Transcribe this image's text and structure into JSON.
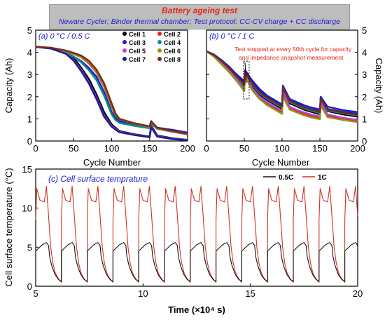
{
  "header": {
    "title": "Battery ageing test",
    "subtitle": "Neware Cycler; Binder thermal chamber;    Test protocol:  CC-CV charge + CC discharge"
  },
  "colors": {
    "blue": "#1b1bd6",
    "red": "#e8231a",
    "black": "#000000",
    "series_1C": "#cc3322",
    "series_05C": "#111111"
  },
  "chart_data": [
    {
      "type": "line",
      "panel": "(a)",
      "title": "(a) 0 °C  / 0.5 C",
      "xlabel": "Cycle Number",
      "ylabel": "Capacity (Ah)",
      "xlim": [
        0,
        200
      ],
      "ylim": [
        0,
        5
      ],
      "xticks": [
        0,
        50,
        100,
        150,
        200
      ],
      "yticks": [
        0,
        1,
        2,
        3,
        4,
        5
      ],
      "legend_position": "top-right",
      "series": [
        {
          "name": "Cell 1",
          "color": "#000000",
          "marker": "square",
          "x": [
            0,
            20,
            40,
            50,
            60,
            70,
            80,
            90,
            100,
            105,
            110,
            130,
            150,
            152,
            160,
            180,
            200
          ],
          "y": [
            4.25,
            4.18,
            3.98,
            3.75,
            3.3,
            2.8,
            2.1,
            1.3,
            0.75,
            0.6,
            0.45,
            0.3,
            0.2,
            0.7,
            0.25,
            0.12,
            0.05
          ]
        },
        {
          "name": "Cell 2",
          "color": "#e8231a",
          "marker": "circle",
          "x": [
            0,
            20,
            40,
            50,
            60,
            70,
            80,
            90,
            100,
            105,
            110,
            130,
            150,
            152,
            160,
            180,
            200
          ],
          "y": [
            4.25,
            4.2,
            4.05,
            3.92,
            3.78,
            3.5,
            3.1,
            2.45,
            1.55,
            1.15,
            0.95,
            0.75,
            0.62,
            0.85,
            0.55,
            0.42,
            0.3
          ]
        },
        {
          "name": "Cell 3",
          "color": "#1b1bd6",
          "marker": "triangle-up",
          "x": [
            0,
            20,
            40,
            50,
            60,
            70,
            80,
            90,
            100,
            105,
            110,
            130,
            150,
            152,
            160,
            180,
            200
          ],
          "y": [
            4.25,
            4.19,
            4.0,
            3.8,
            3.6,
            3.3,
            2.9,
            2.2,
            1.3,
            1.05,
            0.9,
            0.75,
            0.65,
            0.85,
            0.6,
            0.5,
            0.38
          ]
        },
        {
          "name": "Cell 4",
          "color": "#0f8a8a",
          "marker": "triangle-down",
          "x": [
            0,
            20,
            40,
            50,
            60,
            70,
            80,
            90,
            100,
            105,
            110,
            130,
            150,
            152,
            160,
            180,
            200
          ],
          "y": [
            4.25,
            4.19,
            3.98,
            3.8,
            3.55,
            3.2,
            2.75,
            2.05,
            1.2,
            0.95,
            0.82,
            0.68,
            0.58,
            0.8,
            0.55,
            0.44,
            0.34
          ]
        },
        {
          "name": "Cell 5",
          "color": "#c040e0",
          "marker": "triangle-left",
          "x": [
            0,
            20,
            40,
            50,
            60,
            70,
            80,
            90,
            100,
            105,
            110,
            130,
            150,
            152,
            160,
            180,
            200
          ],
          "y": [
            4.25,
            4.17,
            3.95,
            3.65,
            3.2,
            2.65,
            1.95,
            1.15,
            0.68,
            0.55,
            0.42,
            0.28,
            0.18,
            0.65,
            0.22,
            0.1,
            0.04
          ]
        },
        {
          "name": "Cell 6",
          "color": "#8a9a10",
          "marker": "triangle-right",
          "x": [
            0,
            20,
            40,
            50,
            60,
            70,
            80,
            90,
            100,
            105,
            110,
            130,
            150,
            152,
            160,
            180,
            200
          ],
          "y": [
            4.25,
            4.2,
            4.05,
            3.92,
            3.8,
            3.55,
            3.15,
            2.5,
            1.6,
            1.18,
            0.98,
            0.78,
            0.64,
            0.88,
            0.58,
            0.45,
            0.32
          ]
        },
        {
          "name": "Cell 7",
          "color": "#1b1b9a",
          "marker": "diamond",
          "x": [
            0,
            20,
            40,
            50,
            60,
            70,
            80,
            90,
            100,
            105,
            110,
            130,
            150,
            152,
            160,
            180,
            200
          ],
          "y": [
            4.25,
            4.17,
            3.93,
            3.62,
            3.15,
            2.6,
            1.9,
            1.1,
            0.65,
            0.52,
            0.4,
            0.27,
            0.17,
            0.62,
            0.2,
            0.09,
            0.03
          ]
        },
        {
          "name": "Cell 8",
          "color": "#7a2a1a",
          "marker": "hexagon",
          "x": [
            0,
            20,
            40,
            50,
            60,
            70,
            80,
            90,
            100,
            105,
            110,
            130,
            150,
            152,
            160,
            180,
            200
          ],
          "y": [
            4.25,
            4.21,
            4.08,
            3.97,
            3.85,
            3.62,
            3.22,
            2.6,
            1.7,
            1.25,
            1.0,
            0.8,
            0.66,
            0.9,
            0.6,
            0.46,
            0.33
          ]
        }
      ]
    },
    {
      "type": "line",
      "panel": "(b)",
      "title": "(b) 0 °C  / 1 C",
      "xlabel": "Cycle Number",
      "ylabel": "Capacity (Ah)",
      "xlim": [
        0,
        200
      ],
      "ylim": [
        0,
        5
      ],
      "xticks": [
        0,
        50,
        100,
        150,
        200
      ],
      "yticks": [
        0,
        1,
        2,
        3,
        4,
        5
      ],
      "annotation": "Test stopped at every 50th cycle  for capacity and impedance snapshot measurement",
      "series": [
        {
          "name": "Cell 1",
          "color": "#000000",
          "x": [
            0,
            10,
            20,
            30,
            40,
            50,
            51,
            60,
            70,
            80,
            90,
            100,
            101,
            110,
            120,
            130,
            140,
            150,
            151,
            160,
            180,
            200
          ],
          "y": [
            4.05,
            3.85,
            3.55,
            3.2,
            2.8,
            2.4,
            3.1,
            2.5,
            2.1,
            1.85,
            1.65,
            1.45,
            2.3,
            1.7,
            1.55,
            1.4,
            1.3,
            1.2,
            1.9,
            1.35,
            1.2,
            1.1
          ]
        },
        {
          "name": "Cell 2",
          "color": "#e8231a",
          "x": [
            0,
            10,
            20,
            30,
            40,
            50,
            51,
            60,
            70,
            80,
            90,
            100,
            101,
            110,
            120,
            130,
            140,
            150,
            151,
            160,
            180,
            200
          ],
          "y": [
            4.05,
            3.82,
            3.5,
            3.15,
            2.75,
            2.3,
            3.0,
            2.35,
            1.95,
            1.7,
            1.5,
            1.3,
            2.1,
            1.5,
            1.35,
            1.22,
            1.12,
            1.05,
            1.7,
            1.15,
            1.0,
            0.9
          ]
        },
        {
          "name": "Cell 3",
          "color": "#1b1bd6",
          "x": [
            0,
            10,
            20,
            30,
            40,
            50,
            51,
            60,
            70,
            80,
            90,
            100,
            101,
            110,
            120,
            130,
            140,
            150,
            151,
            160,
            180,
            200
          ],
          "y": [
            4.05,
            3.9,
            3.65,
            3.35,
            3.0,
            2.7,
            3.2,
            2.75,
            2.35,
            2.05,
            1.85,
            1.65,
            2.5,
            1.9,
            1.75,
            1.6,
            1.5,
            1.42,
            2.0,
            1.55,
            1.4,
            1.3
          ]
        },
        {
          "name": "Cell 4",
          "color": "#0f8a8a",
          "x": [
            0,
            10,
            20,
            30,
            40,
            50,
            51,
            60,
            70,
            80,
            90,
            100,
            101,
            110,
            120,
            130,
            140,
            150,
            151,
            160,
            180,
            200
          ],
          "y": [
            4.05,
            3.86,
            3.58,
            3.25,
            2.85,
            2.5,
            3.05,
            2.55,
            2.15,
            1.9,
            1.7,
            1.5,
            2.35,
            1.75,
            1.6,
            1.45,
            1.35,
            1.25,
            1.85,
            1.38,
            1.25,
            1.15
          ]
        },
        {
          "name": "Cell 5",
          "color": "#c040e0",
          "x": [
            0,
            10,
            20,
            30,
            40,
            50,
            51,
            60,
            70,
            80,
            90,
            100,
            101,
            110,
            120,
            130,
            140,
            150,
            151,
            160,
            180,
            200
          ],
          "y": [
            4.05,
            3.84,
            3.52,
            3.18,
            2.78,
            2.35,
            3.02,
            2.4,
            2.0,
            1.75,
            1.55,
            1.35,
            2.2,
            1.55,
            1.4,
            1.28,
            1.18,
            1.1,
            1.75,
            1.2,
            1.05,
            0.95
          ]
        },
        {
          "name": "Cell 6",
          "color": "#8a9a10",
          "x": [
            0,
            10,
            20,
            30,
            40,
            50,
            51,
            60,
            70,
            80,
            90,
            100,
            101,
            110,
            120,
            130,
            140,
            150,
            151,
            160,
            180,
            200
          ],
          "y": [
            4.05,
            3.8,
            3.45,
            3.1,
            2.7,
            2.25,
            2.95,
            2.3,
            1.9,
            1.62,
            1.42,
            1.22,
            2.0,
            1.42,
            1.28,
            1.15,
            1.05,
            0.98,
            1.6,
            1.08,
            0.95,
            0.85
          ]
        },
        {
          "name": "Cell 7",
          "color": "#1b1b9a",
          "x": [
            0,
            10,
            20,
            30,
            40,
            50,
            51,
            60,
            70,
            80,
            90,
            100,
            101,
            110,
            120,
            130,
            140,
            150,
            151,
            160,
            180,
            200
          ],
          "y": [
            4.05,
            3.88,
            3.62,
            3.3,
            2.95,
            2.6,
            3.15,
            2.65,
            2.25,
            1.98,
            1.78,
            1.58,
            2.4,
            1.82,
            1.68,
            1.52,
            1.42,
            1.34,
            1.95,
            1.45,
            1.32,
            1.22
          ]
        },
        {
          "name": "Cell 8",
          "color": "#7a2a1a",
          "x": [
            0,
            10,
            20,
            30,
            40,
            50,
            51,
            60,
            70,
            80,
            90,
            100,
            101,
            110,
            120,
            130,
            140,
            150,
            151,
            160,
            180,
            200
          ],
          "y": [
            4.05,
            3.87,
            3.6,
            3.28,
            2.9,
            2.55,
            3.1,
            2.6,
            2.2,
            1.95,
            1.75,
            1.55,
            2.4,
            1.8,
            1.65,
            1.5,
            1.4,
            1.3,
            1.9,
            1.42,
            1.28,
            1.18
          ]
        }
      ]
    },
    {
      "type": "line",
      "panel": "(c)",
      "title": "(c)  Cell surface temprature",
      "xlabel": "Time (×10⁴ s)",
      "ylabel": "Cell surface temperature (°C)",
      "xlim": [
        5,
        20
      ],
      "ylim": [
        0,
        15
      ],
      "xticks": [
        5,
        10,
        15,
        20
      ],
      "yticks": [
        0,
        5,
        10,
        15
      ],
      "legend_position": "top-right",
      "period": 1.2,
      "series": [
        {
          "name": "0.5C",
          "color": "#111111",
          "x": [
            5.0,
            5.3,
            5.5,
            5.6,
            5.65,
            5.75,
            5.9,
            6.05,
            6.2
          ],
          "y": [
            4.5,
            5.3,
            5.6,
            5.2,
            3.8,
            2.6,
            1.5,
            0.9,
            0.6
          ]
        },
        {
          "name": "1C",
          "color": "#cc3322",
          "x": [
            5.0,
            5.05,
            5.2,
            5.4,
            5.5,
            5.6,
            5.7,
            5.8,
            5.9,
            6.0,
            6.1,
            6.2
          ],
          "y": [
            8.5,
            12.5,
            11.0,
            10.8,
            12.8,
            9.0,
            5.0,
            3.0,
            1.8,
            1.2,
            0.8,
            0.5
          ]
        }
      ]
    }
  ]
}
